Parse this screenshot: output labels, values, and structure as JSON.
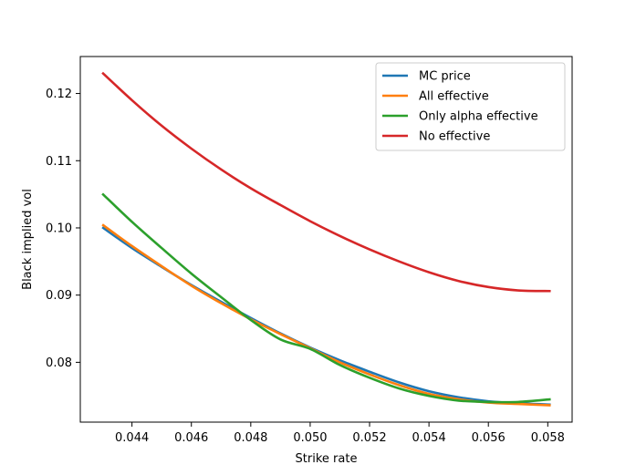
{
  "chart_data": {
    "type": "line",
    "title": "",
    "xlabel": "Strike rate",
    "ylabel": "Black implied vol",
    "xlim": [
      0.04226,
      0.05882
    ],
    "ylim": [
      0.0711,
      0.1255
    ],
    "xticks": [
      0.044,
      0.046,
      0.048,
      0.05,
      0.052,
      0.054,
      0.056,
      0.058
    ],
    "xtick_labels": [
      "0.044",
      "0.046",
      "0.048",
      "0.050",
      "0.052",
      "0.054",
      "0.056",
      "0.058"
    ],
    "yticks": [
      0.08,
      0.09,
      0.1,
      0.11,
      0.12
    ],
    "ytick_labels": [
      "0.08",
      "0.09",
      "0.10",
      "0.11",
      "0.12"
    ],
    "grid": false,
    "legend_position": "top-right",
    "x": [
      0.043,
      0.044,
      0.045,
      0.046,
      0.047,
      0.048,
      0.049,
      0.05,
      0.051,
      0.052,
      0.053,
      0.054,
      0.055,
      0.056,
      0.057,
      0.0581
    ],
    "series": [
      {
        "name": "MC price",
        "color": "#1f77b4",
        "values": [
          0.1001,
          0.097,
          0.0942,
          0.0915,
          0.089,
          0.0866,
          0.0843,
          0.0822,
          0.0803,
          0.0786,
          0.077,
          0.0757,
          0.0748,
          0.0742,
          0.0739,
          0.0737
        ]
      },
      {
        "name": "All effective",
        "color": "#ff7f0e",
        "values": [
          0.1005,
          0.0973,
          0.0943,
          0.0914,
          0.0888,
          0.0864,
          0.0842,
          0.0821,
          0.08,
          0.0782,
          0.0766,
          0.0753,
          0.0745,
          0.074,
          0.0738,
          0.0736
        ]
      },
      {
        "name": "Only alpha effective",
        "color": "#2ca02c",
        "values": [
          0.1051,
          0.1009,
          0.097,
          0.0932,
          0.0897,
          0.0863,
          0.0834,
          0.082,
          0.0796,
          0.0777,
          0.0761,
          0.075,
          0.0743,
          0.0741,
          0.0741,
          0.0745
        ]
      },
      {
        "name": "No effective",
        "color": "#d62728",
        "values": [
          0.1231,
          0.119,
          0.1152,
          0.1118,
          0.1087,
          0.1059,
          0.1034,
          0.101,
          0.0988,
          0.0968,
          0.095,
          0.0934,
          0.0921,
          0.0912,
          0.0907,
          0.0906
        ]
      }
    ]
  }
}
